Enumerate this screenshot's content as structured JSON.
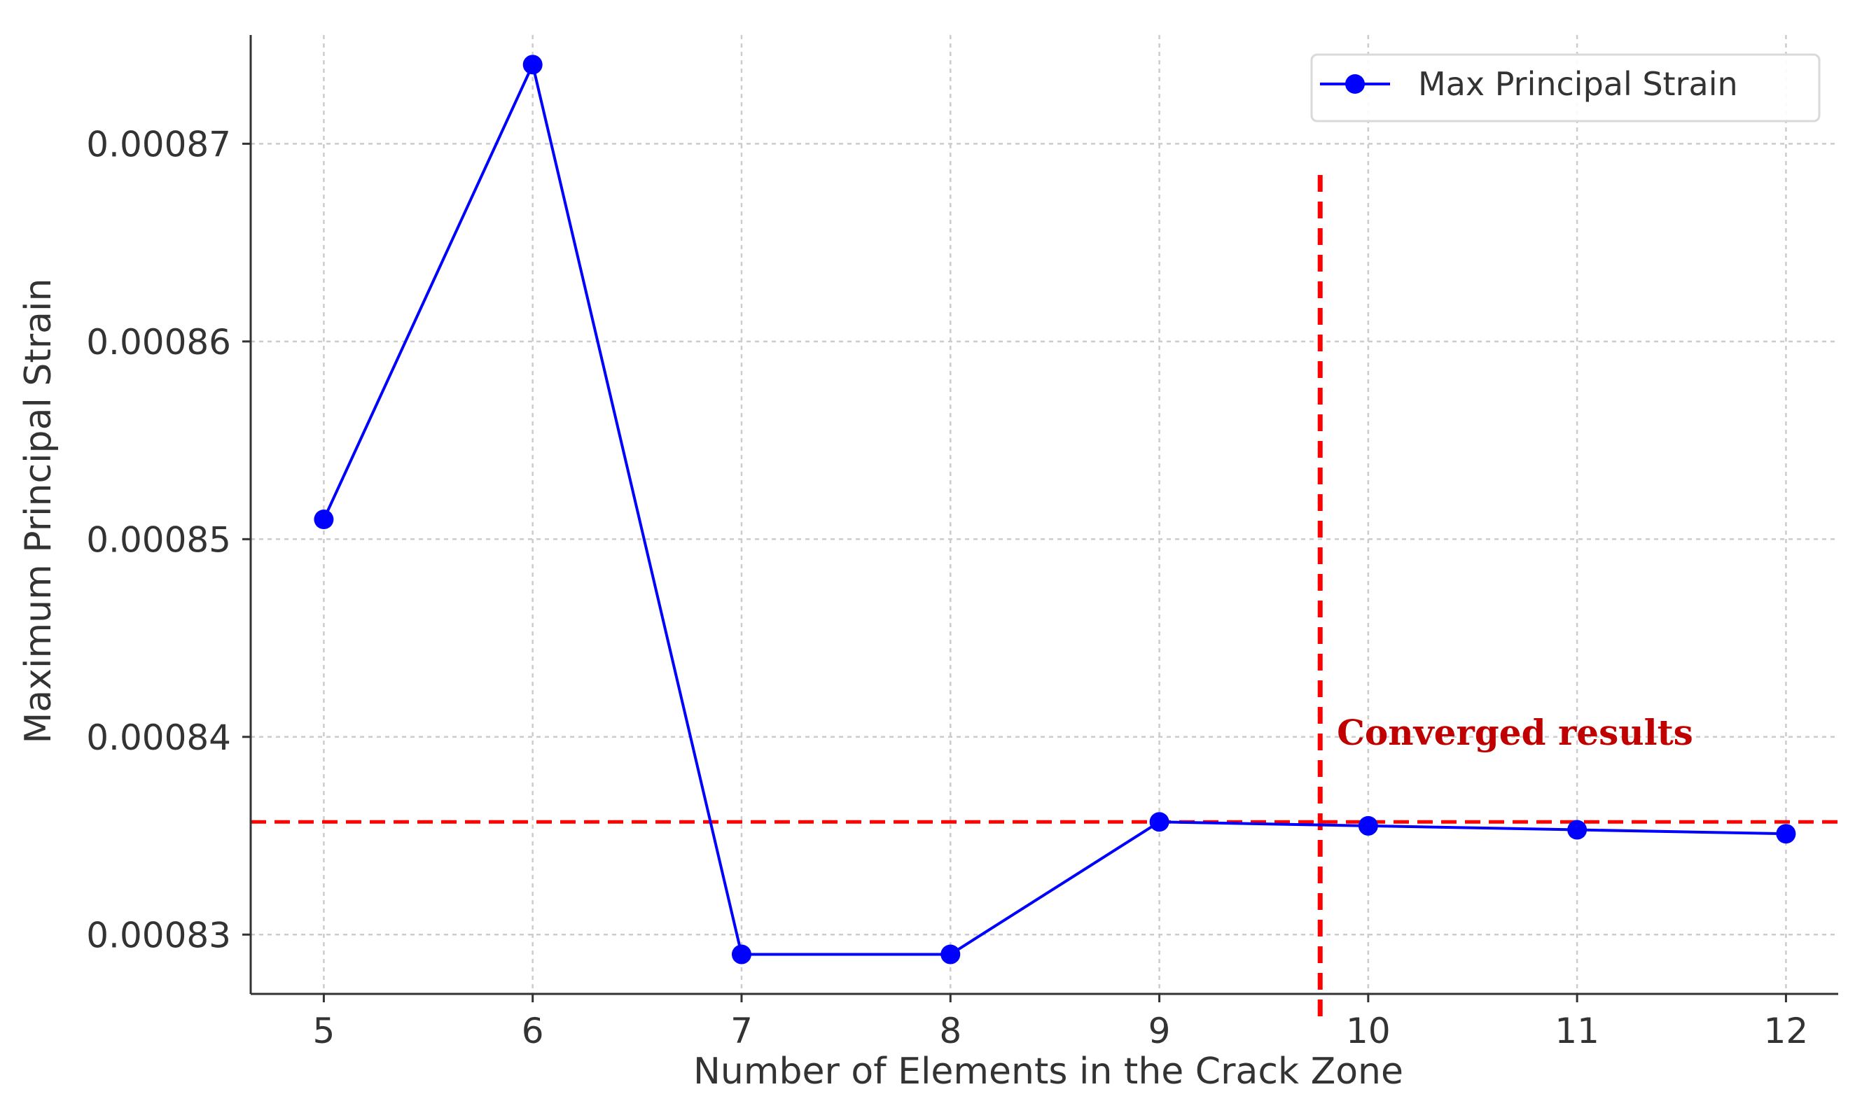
{
  "chart_data": {
    "type": "line",
    "x": [
      5,
      6,
      7,
      8,
      9,
      10,
      11,
      12
    ],
    "series": [
      {
        "name": "Max Principal Strain",
        "values": [
          0.000851,
          0.000874,
          0.000829,
          0.000829,
          0.0008357,
          0.0008355,
          0.0008353,
          0.0008351
        ],
        "color": "#0000ff"
      }
    ],
    "title": "",
    "xlabel": "Number of Elements in the Crack Zone",
    "ylabel": "Maximum Principal Strain",
    "xlim": [
      4.65,
      12.25
    ],
    "ylim": [
      0.000827,
      0.0008755
    ],
    "x_ticks": [
      5,
      6,
      7,
      8,
      9,
      10,
      11,
      12
    ],
    "x_tick_labels": [
      "5",
      "6",
      "7",
      "8",
      "9",
      "10",
      "11",
      "12"
    ],
    "y_ticks": [
      0.00083,
      0.00084,
      0.00085,
      0.00086,
      0.00087
    ],
    "y_tick_labels": [
      "0.00083",
      "0.00084",
      "0.00085",
      "0.00086",
      "0.00087"
    ],
    "grid": true,
    "legend": {
      "placement": "top-right",
      "entries": [
        "Max Principal Strain"
      ]
    },
    "reference_lines": [
      {
        "orientation": "horizontal",
        "value": 0.0008357,
        "color": "#ff0000",
        "style": "dashed"
      },
      {
        "orientation": "vertical",
        "value": 9.77,
        "color": "#ff0000",
        "style": "dashed"
      }
    ],
    "annotations": [
      {
        "text": "Converged results",
        "x": 9.85,
        "y": 0.0008396,
        "color": "#c00000"
      }
    ]
  }
}
